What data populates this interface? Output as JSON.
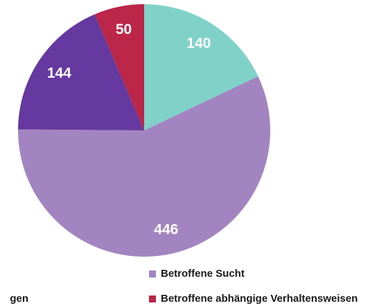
{
  "chart_data": {
    "type": "pie",
    "categories": [
      null,
      "Betroffene Sucht",
      "gen",
      "Betroffene abhängige Verhaltensweisen"
    ],
    "values": [
      140,
      446,
      144,
      50
    ],
    "colors": [
      "#80d2c9",
      "#a285c0",
      "#6539a0",
      "#bb2649"
    ]
  }
}
